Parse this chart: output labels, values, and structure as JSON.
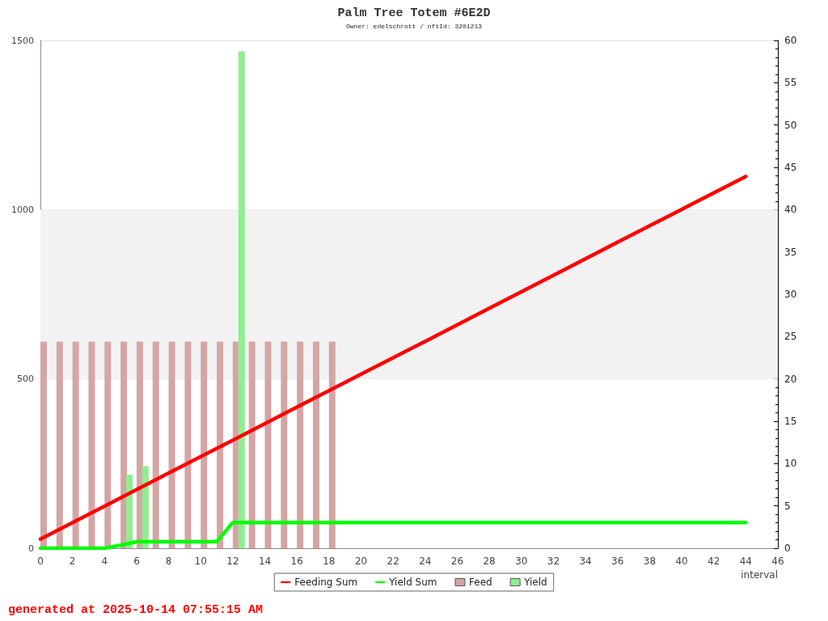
{
  "chart_data": {
    "type": "bar",
    "title": "Palm Tree Totem #6E2D",
    "subtitle": "Owner: edelschrott / nftId: 3201213",
    "xlabel": "interval",
    "xlim": [
      0,
      46
    ],
    "xticks": [
      0,
      2,
      4,
      6,
      8,
      10,
      12,
      14,
      16,
      18,
      20,
      22,
      24,
      26,
      28,
      30,
      32,
      34,
      36,
      38,
      40,
      42,
      44,
      46
    ],
    "ylim": [
      0,
      1500
    ],
    "yticks": [
      0,
      500,
      1000,
      1500
    ],
    "y2lim": [
      0,
      60
    ],
    "y2ticks": [
      0,
      {
        "value": 1,
        "label": null
      },
      {
        "value": 2,
        "label": null
      },
      {
        "value": 3,
        "label": null
      },
      {
        "value": 4,
        "label": null
      },
      5,
      {
        "value": 6,
        "label": null
      },
      {
        "value": 7,
        "label": null
      },
      {
        "value": 8,
        "label": null
      },
      {
        "value": 9,
        "label": null
      },
      10,
      {
        "value": 11,
        "label": null
      },
      {
        "value": 12,
        "label": null
      },
      {
        "value": 13,
        "label": null
      },
      {
        "value": 14,
        "label": null
      },
      15,
      {
        "value": 16,
        "label": null
      },
      {
        "value": 17,
        "label": null
      },
      {
        "value": 18,
        "label": null
      },
      {
        "value": 19,
        "label": null
      },
      20,
      {
        "value": 21,
        "label": null
      },
      {
        "value": 22,
        "label": null
      },
      {
        "value": 23,
        "label": null
      },
      {
        "value": 24,
        "label": null
      },
      25,
      {
        "value": 26,
        "label": null
      },
      {
        "value": 27,
        "label": null
      },
      {
        "value": 28,
        "label": null
      },
      {
        "value": 29,
        "label": null
      },
      30,
      {
        "value": 31,
        "label": null
      },
      {
        "value": 32,
        "label": null
      },
      {
        "value": 33,
        "label": null
      },
      {
        "value": 34,
        "label": null
      },
      35,
      {
        "value": 36,
        "label": null
      },
      {
        "value": 37,
        "label": null
      },
      {
        "value": 38,
        "label": null
      },
      {
        "value": 39,
        "label": null
      },
      40,
      {
        "value": 41,
        "label": null
      },
      {
        "value": 42,
        "label": null
      },
      {
        "value": 43,
        "label": null
      },
      {
        "value": 44,
        "label": null
      },
      45,
      {
        "value": 46,
        "label": null
      },
      {
        "value": 47,
        "label": null
      },
      {
        "value": 48,
        "label": null
      },
      {
        "value": 49,
        "label": null
      },
      50,
      {
        "value": 51,
        "label": null
      },
      {
        "value": 52,
        "label": null
      },
      {
        "value": 53,
        "label": null
      },
      {
        "value": 54,
        "label": null
      },
      55,
      {
        "value": 56,
        "label": null
      },
      {
        "value": 57,
        "label": null
      },
      {
        "value": 58,
        "label": null
      },
      {
        "value": 59,
        "label": null
      },
      60
    ],
    "grid": "y",
    "legend": "bottom",
    "marker": "none",
    "line_style": "solid",
    "bands": [
      {
        "axis": "y",
        "from": 500,
        "to": 1000,
        "color": "#f2f2f2"
      }
    ],
    "annotations": [
      "generated at 2025-10-14 07:55:15 AM"
    ],
    "series": [
      {
        "name": "Feeding Sum",
        "type": "line",
        "color": "#ff0000",
        "x": [
          0,
          4,
          8,
          12,
          16,
          20,
          24,
          28,
          32,
          36,
          40,
          44
        ],
        "values": [
          27,
          124,
          222,
          319,
          417,
          514,
          611,
          709,
          806,
          904,
          1001,
          1098
        ]
      },
      {
        "name": "Yield Sum",
        "type": "line",
        "color": "#00ff00",
        "x": [
          0,
          4,
          5,
          6,
          11,
          12,
          44
        ],
        "values": [
          0,
          0,
          9,
          19,
          19,
          76,
          76
        ]
      },
      {
        "name": "Feed",
        "axis": "y2",
        "color": "#d4a5a5",
        "x": [
          0.2,
          1.2,
          2.2,
          3.2,
          4.2,
          5.2,
          6.2,
          7.2,
          8.2,
          9.2,
          10.2,
          11.2,
          12.2,
          13.2,
          14.2,
          15.2,
          16.2,
          17.2,
          18.2
        ],
        "values": [
          24.4,
          24.4,
          24.4,
          24.4,
          24.4,
          24.4,
          24.4,
          24.4,
          24.4,
          24.4,
          24.4,
          24.4,
          24.4,
          24.4,
          24.4,
          24.4,
          24.4,
          24.4,
          24.4
        ]
      },
      {
        "name": "Yield",
        "axis": "y2",
        "color": "#90ee90",
        "x": [
          5.55,
          6.55,
          12.55
        ],
        "values": [
          8.7,
          9.7,
          58.7
        ]
      }
    ]
  }
}
